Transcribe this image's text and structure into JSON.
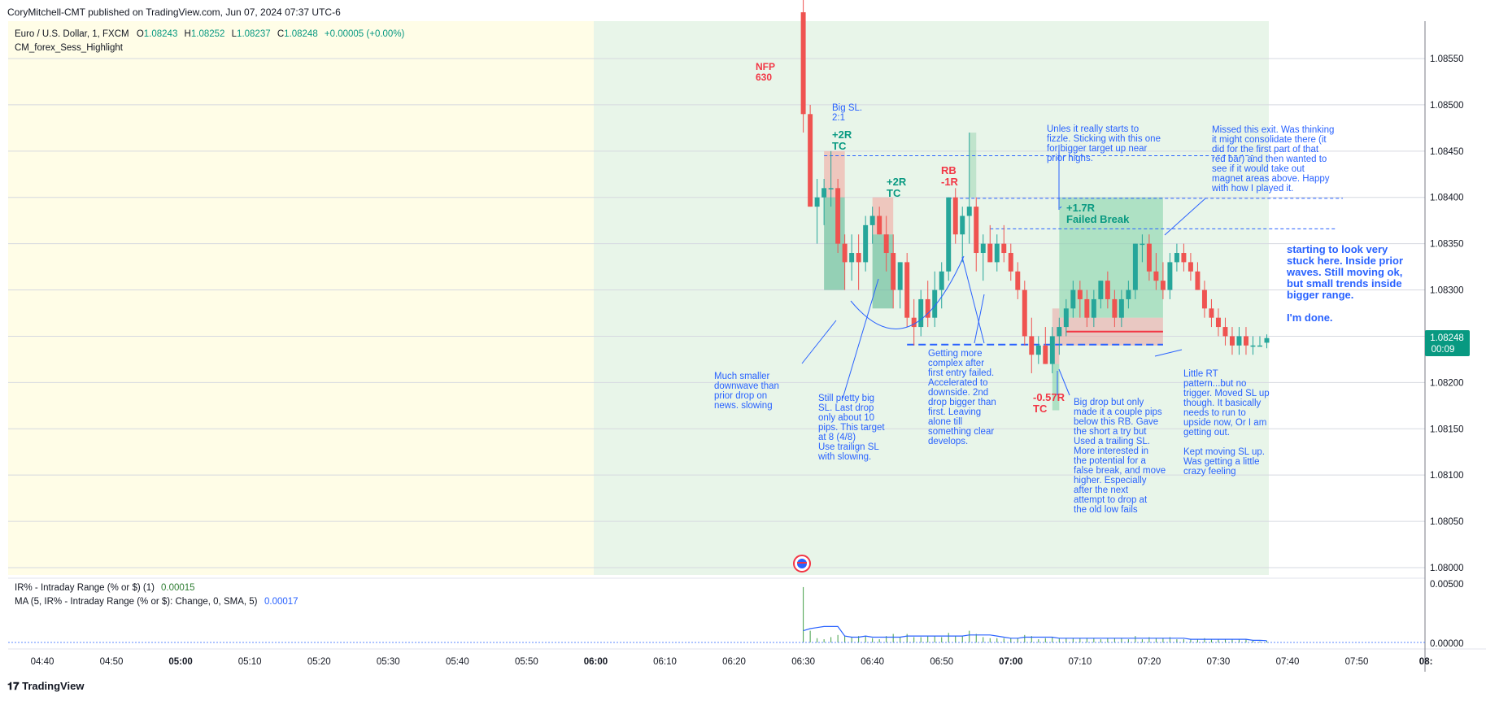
{
  "header": {
    "publisher_line": "CoryMitchell-CMT published on TradingView.com, Jun 07, 2024 07:37 UTC-6"
  },
  "legend": {
    "symbol": "Euro / U.S. Dollar, 1, FXCM",
    "o_label": "O",
    "o_value": "1.08243",
    "h_label": "H",
    "h_value": "1.08252",
    "l_label": "L",
    "l_value": "1.08237",
    "c_label": "C",
    "c_value": "1.08248",
    "change": "+0.00005 (+0.00%)",
    "indicator": "CM_forex_Sess_Highlight"
  },
  "lower_pane": {
    "line1_label": "IR% - Intraday Range (% or $) (1)",
    "line1_value": "0.00015",
    "line2_label": "MA (5, IR% - Intraday Range (% or $): Change, 0, SMA, 5)",
    "line2_value": "0.00017",
    "axis_ticks": [
      "0.00500",
      "0.00000"
    ]
  },
  "price_badge": {
    "price": "1.08248",
    "countdown": "00:09"
  },
  "branding": {
    "name": "TradingView"
  },
  "colors": {
    "up": "#26a69a",
    "down": "#ef5350",
    "annotation_blue": "#2962ff",
    "annotation_green": "#089981",
    "annotation_red": "#f23645",
    "session_yellow": "#fffde7",
    "session_green": "#e8f5e9"
  },
  "chart_data": {
    "type": "candlestick",
    "symbol": "EURUSD",
    "timeframe": "1",
    "ylim": [
      1.0798,
      1.0862
    ],
    "y_ticks": [
      "1.08550",
      "1.08500",
      "1.08450",
      "1.08400",
      "1.08350",
      "1.08300",
      "1.08250",
      "1.08200",
      "1.08150",
      "1.08100",
      "1.08050",
      "1.08000"
    ],
    "x_ticks": [
      "04:40",
      "04:50",
      "05:00",
      "05:10",
      "05:20",
      "05:30",
      "05:40",
      "05:50",
      "06:00",
      "06:10",
      "06:20",
      "06:30",
      "06:40",
      "06:50",
      "07:00",
      "07:10",
      "07:20",
      "07:30",
      "07:40",
      "07:50",
      "08:"
    ],
    "x_ticks_bold": [
      "05:00",
      "06:00",
      "07:00",
      "08:"
    ],
    "candles": [
      {
        "t": "06:30",
        "o": 1.086,
        "h": 1.0862,
        "l": 1.0847,
        "c": 1.0849
      },
      {
        "t": "06:31",
        "o": 1.0849,
        "h": 1.085,
        "l": 1.0839,
        "c": 1.0839
      },
      {
        "t": "06:32",
        "o": 1.0839,
        "h": 1.0842,
        "l": 1.0835,
        "c": 1.084
      },
      {
        "t": "06:33",
        "o": 1.084,
        "h": 1.0842,
        "l": 1.0837,
        "c": 1.0841
      },
      {
        "t": "06:34",
        "o": 1.0841,
        "h": 1.0845,
        "l": 1.0839,
        "c": 1.0841
      },
      {
        "t": "06:35",
        "o": 1.0841,
        "h": 1.0842,
        "l": 1.0834,
        "c": 1.0835
      },
      {
        "t": "06:36",
        "o": 1.0835,
        "h": 1.0836,
        "l": 1.083,
        "c": 1.0833
      },
      {
        "t": "06:37",
        "o": 1.0833,
        "h": 1.0836,
        "l": 1.0831,
        "c": 1.0834
      },
      {
        "t": "06:38",
        "o": 1.0834,
        "h": 1.0836,
        "l": 1.083,
        "c": 1.0833
      },
      {
        "t": "06:39",
        "o": 1.0833,
        "h": 1.0838,
        "l": 1.0832,
        "c": 1.0837
      },
      {
        "t": "06:40",
        "o": 1.0837,
        "h": 1.0839,
        "l": 1.0835,
        "c": 1.0838
      },
      {
        "t": "06:41",
        "o": 1.0838,
        "h": 1.0839,
        "l": 1.0836,
        "c": 1.0836
      },
      {
        "t": "06:42",
        "o": 1.0836,
        "h": 1.0838,
        "l": 1.0832,
        "c": 1.0834
      },
      {
        "t": "06:43",
        "o": 1.0834,
        "h": 1.0836,
        "l": 1.0828,
        "c": 1.083
      },
      {
        "t": "06:44",
        "o": 1.083,
        "h": 1.0833,
        "l": 1.0828,
        "c": 1.0833
      },
      {
        "t": "06:45",
        "o": 1.0833,
        "h": 1.0834,
        "l": 1.0826,
        "c": 1.0827
      },
      {
        "t": "06:46",
        "o": 1.0827,
        "h": 1.0829,
        "l": 1.0824,
        "c": 1.0826
      },
      {
        "t": "06:47",
        "o": 1.0826,
        "h": 1.083,
        "l": 1.0825,
        "c": 1.0829
      },
      {
        "t": "06:48",
        "o": 1.0829,
        "h": 1.0831,
        "l": 1.0826,
        "c": 1.0827
      },
      {
        "t": "06:49",
        "o": 1.0827,
        "h": 1.0832,
        "l": 1.0826,
        "c": 1.083
      },
      {
        "t": "06:50",
        "o": 1.083,
        "h": 1.0833,
        "l": 1.0828,
        "c": 1.0832
      },
      {
        "t": "06:51",
        "o": 1.0832,
        "h": 1.084,
        "l": 1.0831,
        "c": 1.084
      },
      {
        "t": "06:52",
        "o": 1.084,
        "h": 1.0841,
        "l": 1.0835,
        "c": 1.0836
      },
      {
        "t": "06:53",
        "o": 1.0836,
        "h": 1.0839,
        "l": 1.0833,
        "c": 1.0838
      },
      {
        "t": "06:54",
        "o": 1.0838,
        "h": 1.0847,
        "l": 1.0835,
        "c": 1.0839
      },
      {
        "t": "06:55",
        "o": 1.0839,
        "h": 1.084,
        "l": 1.0832,
        "c": 1.0834
      },
      {
        "t": "06:56",
        "o": 1.0834,
        "h": 1.0836,
        "l": 1.0831,
        "c": 1.0835
      },
      {
        "t": "06:57",
        "o": 1.0835,
        "h": 1.0837,
        "l": 1.0833,
        "c": 1.0833
      },
      {
        "t": "06:58",
        "o": 1.0833,
        "h": 1.0836,
        "l": 1.0832,
        "c": 1.0835
      },
      {
        "t": "06:59",
        "o": 1.0835,
        "h": 1.0837,
        "l": 1.0833,
        "c": 1.0834
      },
      {
        "t": "07:00",
        "o": 1.0834,
        "h": 1.0835,
        "l": 1.0831,
        "c": 1.0832
      },
      {
        "t": "07:01",
        "o": 1.0832,
        "h": 1.0833,
        "l": 1.0829,
        "c": 1.083
      },
      {
        "t": "07:02",
        "o": 1.083,
        "h": 1.0831,
        "l": 1.0824,
        "c": 1.0825
      },
      {
        "t": "07:03",
        "o": 1.0825,
        "h": 1.0827,
        "l": 1.0821,
        "c": 1.0823
      },
      {
        "t": "07:04",
        "o": 1.0823,
        "h": 1.0825,
        "l": 1.0822,
        "c": 1.0824
      },
      {
        "t": "07:05",
        "o": 1.0824,
        "h": 1.0826,
        "l": 1.0822,
        "c": 1.0822
      },
      {
        "t": "07:06",
        "o": 1.0822,
        "h": 1.0826,
        "l": 1.0821,
        "c": 1.0825
      },
      {
        "t": "07:07",
        "o": 1.0825,
        "h": 1.0827,
        "l": 1.0823,
        "c": 1.0826
      },
      {
        "t": "07:08",
        "o": 1.0826,
        "h": 1.0829,
        "l": 1.0825,
        "c": 1.0828
      },
      {
        "t": "07:09",
        "o": 1.0828,
        "h": 1.0831,
        "l": 1.0827,
        "c": 1.083
      },
      {
        "t": "07:10",
        "o": 1.083,
        "h": 1.0831,
        "l": 1.0827,
        "c": 1.0829
      },
      {
        "t": "07:11",
        "o": 1.0829,
        "h": 1.083,
        "l": 1.0826,
        "c": 1.0827
      },
      {
        "t": "07:12",
        "o": 1.0827,
        "h": 1.083,
        "l": 1.0826,
        "c": 1.0829
      },
      {
        "t": "07:13",
        "o": 1.0829,
        "h": 1.0831,
        "l": 1.0828,
        "c": 1.0831
      },
      {
        "t": "07:14",
        "o": 1.0831,
        "h": 1.0832,
        "l": 1.0828,
        "c": 1.0829
      },
      {
        "t": "07:15",
        "o": 1.0829,
        "h": 1.083,
        "l": 1.0826,
        "c": 1.0827
      },
      {
        "t": "07:16",
        "o": 1.0827,
        "h": 1.083,
        "l": 1.0826,
        "c": 1.0829
      },
      {
        "t": "07:17",
        "o": 1.0829,
        "h": 1.0831,
        "l": 1.0828,
        "c": 1.083
      },
      {
        "t": "07:18",
        "o": 1.083,
        "h": 1.0835,
        "l": 1.0829,
        "c": 1.0835
      },
      {
        "t": "07:19",
        "o": 1.0835,
        "h": 1.0836,
        "l": 1.0833,
        "c": 1.0835
      },
      {
        "t": "07:20",
        "o": 1.0835,
        "h": 1.0836,
        "l": 1.0831,
        "c": 1.0832
      },
      {
        "t": "07:21",
        "o": 1.0832,
        "h": 1.0834,
        "l": 1.083,
        "c": 1.0831
      },
      {
        "t": "07:22",
        "o": 1.0831,
        "h": 1.0833,
        "l": 1.0829,
        "c": 1.083
      },
      {
        "t": "07:23",
        "o": 1.083,
        "h": 1.0834,
        "l": 1.0829,
        "c": 1.0833
      },
      {
        "t": "07:24",
        "o": 1.0833,
        "h": 1.0835,
        "l": 1.0832,
        "c": 1.0834
      },
      {
        "t": "07:25",
        "o": 1.0834,
        "h": 1.0835,
        "l": 1.0832,
        "c": 1.0833
      },
      {
        "t": "07:26",
        "o": 1.0833,
        "h": 1.0834,
        "l": 1.0831,
        "c": 1.0832
      },
      {
        "t": "07:27",
        "o": 1.0832,
        "h": 1.0833,
        "l": 1.083,
        "c": 1.083
      },
      {
        "t": "07:28",
        "o": 1.083,
        "h": 1.0831,
        "l": 1.0827,
        "c": 1.0828
      },
      {
        "t": "07:29",
        "o": 1.0828,
        "h": 1.0829,
        "l": 1.0826,
        "c": 1.0827
      },
      {
        "t": "07:30",
        "o": 1.0827,
        "h": 1.0828,
        "l": 1.0825,
        "c": 1.0826
      },
      {
        "t": "07:31",
        "o": 1.0826,
        "h": 1.0827,
        "l": 1.0824,
        "c": 1.0825
      },
      {
        "t": "07:32",
        "o": 1.0825,
        "h": 1.0826,
        "l": 1.0823,
        "c": 1.0824
      },
      {
        "t": "07:33",
        "o": 1.0824,
        "h": 1.0826,
        "l": 1.0823,
        "c": 1.0825
      },
      {
        "t": "07:34",
        "o": 1.0825,
        "h": 1.0826,
        "l": 1.0823,
        "c": 1.0824
      },
      {
        "t": "07:35",
        "o": 1.0824,
        "h": 1.0825,
        "l": 1.0823,
        "c": 1.0824
      },
      {
        "t": "07:36",
        "o": 1.0824,
        "h": 1.0825,
        "l": 1.0824,
        "c": 1.0824
      },
      {
        "t": "07:37",
        "o": 1.08243,
        "h": 1.08252,
        "l": 1.08237,
        "c": 1.08248
      }
    ],
    "lower_pane_series": {
      "ir_values": [
        0.0052,
        0.0011,
        0.0004,
        0.0003,
        0.0005,
        0.0007,
        0.0006,
        0.0005,
        0.0006,
        0.0006,
        0.0004,
        0.0003,
        0.0006,
        0.0008,
        0.0005,
        0.0008,
        0.0005,
        0.0005,
        0.0006,
        0.0006,
        0.0005,
        0.0009,
        0.0006,
        0.0006,
        0.0011,
        0.0008,
        0.0005,
        0.0004,
        0.0004,
        0.0004,
        0.0004,
        0.0004,
        0.0007,
        0.0006,
        0.0003,
        0.0004,
        0.0005,
        0.0004,
        0.0004,
        0.0004,
        0.0004,
        0.0004,
        0.0004,
        0.0003,
        0.0004,
        0.0004,
        0.0004,
        0.0003,
        0.0006,
        0.0003,
        0.0005,
        0.0004,
        0.0004,
        0.0005,
        0.0003,
        0.0003,
        0.0003,
        0.0003,
        0.0004,
        0.0003,
        0.0003,
        0.0003,
        0.0003,
        0.0003,
        0.0003,
        0.0002,
        0.0001,
        0.00015
      ],
      "ma_values": [
        0.0011,
        0.0013,
        0.0014,
        0.0015,
        0.0015,
        0.0015,
        0.0006,
        0.0005,
        0.0005,
        0.0006,
        0.0005,
        0.0005,
        0.0005,
        0.0005,
        0.0005,
        0.0006,
        0.0006,
        0.0006,
        0.0006,
        0.0006,
        0.0006,
        0.0006,
        0.0006,
        0.0006,
        0.0007,
        0.0007,
        0.0007,
        0.0007,
        0.0006,
        0.0005,
        0.0004,
        0.0004,
        0.0005,
        0.0005,
        0.0005,
        0.0005,
        0.0005,
        0.0004,
        0.0004,
        0.0004,
        0.0004,
        0.0004,
        0.0004,
        0.0004,
        0.0004,
        0.0004,
        0.0004,
        0.0004,
        0.0004,
        0.0004,
        0.0004,
        0.0004,
        0.0004,
        0.0004,
        0.0004,
        0.0004,
        0.0003,
        0.0003,
        0.0003,
        0.0003,
        0.0003,
        0.0003,
        0.0003,
        0.0003,
        0.0003,
        0.0002,
        0.0002,
        0.00017
      ]
    },
    "annotations": {
      "nfp": "NFP\n630",
      "big_sl": "Big SL.\n2:1",
      "t1_result": "+2R\nTC",
      "t2_result": "+2R\nTC",
      "rb_result": "RB\n-1R",
      "t4_result": "+1.7R\nFailed Break",
      "t5_result": "-0.57R\nTC",
      "note_smaller_downwave": "Much smaller\ndownwave than\nprior drop on\nnews.  slowing",
      "note_still_big_sl": "Still pretty big\nSL. Last drop\nonly about 10\npips. This target\nat 8 (4/8)\nUse trailign SL\nwith slowing.",
      "note_more_complex": "Getting more\ncomplex after\nfirst entry failed.\nAccelerated to\ndownside. 2nd\ndrop bigger than\nfirst. Leaving\nalone till\nsomething clear\ndevelops.",
      "note_fizzle": "Unles it really starts to\nfizzle. Sticking with this one\nfor bigger target up near\nprior highs.",
      "note_missed_exit": "Missed this exit. Was thinking\nit might consolidate there (it\ndid for the first part of that\nred bar) and then wanted to\nsee if it would take out\nmagnet areas above. Happy\nwith how I played it.",
      "note_big_drop": "Big drop but only\nmade it a couple pips\nbelow this RB. Gave\nthe short a try but\nUsed a trailing SL.\nMore interested in\nthe potential for a\nfalse break, and move\nhigher. Especially\nafter the next\nattempt to drop at\nthe old low fails",
      "note_little_rt": "Little RT\npattern...but no\ntrigger. Moved SL up\nthough. It basically\nneeds to run to\nupside now, Or I am\ngetting out.\n\nKept moving SL up.\nWas getting a little\ncrazy feeling",
      "note_stuck": "starting to look very\nstuck here. Inside prior\nwaves. Still moving ok,\nbut small trends inside\nbigger range.\n\nI'm done."
    }
  }
}
